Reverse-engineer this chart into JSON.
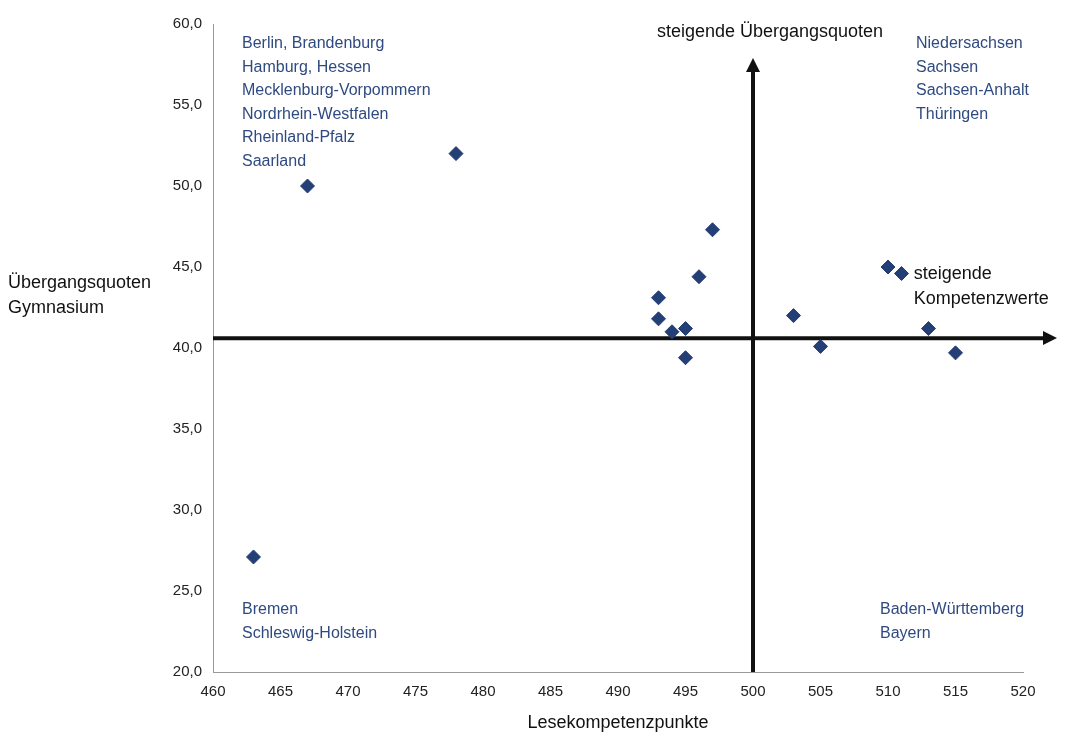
{
  "chart_data": {
    "type": "scatter",
    "xlabel": "Lesekompetenzpunkte",
    "ylabel": "Übergangsquoten Gymnasium",
    "x": [
      467,
      478,
      463,
      497,
      496,
      493,
      493,
      494,
      495,
      495,
      503,
      505,
      510,
      511,
      513,
      515
    ],
    "series": [
      {
        "color": "#243f75",
        "values": [
          50.0,
          52.0,
          27.1,
          47.3,
          44.4,
          43.1,
          41.8,
          41.0,
          41.2,
          39.4,
          42.0,
          40.1,
          45.0,
          44.6,
          41.2,
          39.7
        ]
      }
    ],
    "xlim": [
      460,
      520
    ],
    "xticks": [
      460,
      465,
      470,
      475,
      480,
      485,
      490,
      495,
      500,
      505,
      510,
      515,
      520
    ],
    "ylim": [
      20,
      60
    ],
    "yticks": [
      {
        "value": 20,
        "label": "20,0"
      },
      {
        "value": 25,
        "label": "25,0"
      },
      {
        "value": 30,
        "label": "30,0"
      },
      {
        "value": 35,
        "label": "35,0"
      },
      {
        "value": 40,
        "label": "40,0"
      },
      {
        "value": 45,
        "label": "45,0"
      },
      {
        "value": 50,
        "label": "50,0"
      },
      {
        "value": 55,
        "label": "55,0"
      },
      {
        "value": 60,
        "label": "60,0"
      }
    ],
    "ref_lines": [
      {
        "axis": "x",
        "value": 500,
        "label": "steigende Übergangsquoten",
        "color": "#111111"
      },
      {
        "axis": "y",
        "value": 40.6,
        "label": "steigende Kompetenzwerte",
        "color": "#111111"
      }
    ],
    "annotations": [
      "Berlin, Brandenburg\nHamburg, Hessen\nMecklenburg-Vorpommern\nNordrhein-Westfalen\nRheinland-Pfalz\nSaarland",
      "Niedersachsen\nSachsen\nSachsen-Anhalt\nThüringen",
      "Bremen\nSchleswig-Holstein",
      "Baden-Württemberg\nBayern"
    ],
    "marker": "diamond",
    "grid": false,
    "legend": false
  }
}
